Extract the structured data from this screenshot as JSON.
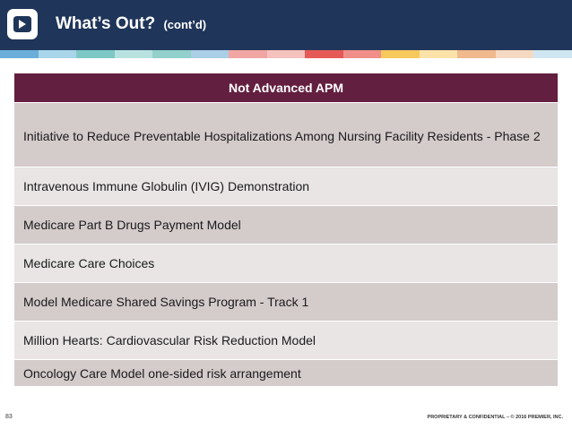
{
  "header": {
    "title": "What’s Out?",
    "subtitle": "(cont’d)",
    "background": "#1f3559"
  },
  "stripe_colors": [
    "#6aaed9",
    "#a8d5ea",
    "#7ec9c5",
    "#b8e2e0",
    "#92d0cb",
    "#a8cfe6",
    "#f2a6a3",
    "#f4c1bd",
    "#e55a57",
    "#f08f8a",
    "#f7c85c",
    "#fbe2a8",
    "#f0b98e",
    "#f6d9c2",
    "#cfe6f2"
  ],
  "table": {
    "header": "Not Advanced APM",
    "header_color": "#631f3f",
    "rows": [
      "Initiative to Reduce Preventable Hospitalizations Among Nursing Facility Residents - Phase 2",
      "Intravenous Immune Globulin (IVIG) Demonstration",
      "Medicare Part B Drugs Payment Model",
      "Medicare Care Choices",
      "Model Medicare Shared Savings Program - Track 1",
      "Million Hearts: Cardiovascular Risk Reduction Model",
      "Oncology Care Model one-sided risk arrangement"
    ]
  },
  "footer": {
    "page_number": "83",
    "confidential": "PROPRIETARY & CONFIDENTIAL – © 2016 PREMIER, INC."
  },
  "logo_icon": "premier-logo-icon"
}
